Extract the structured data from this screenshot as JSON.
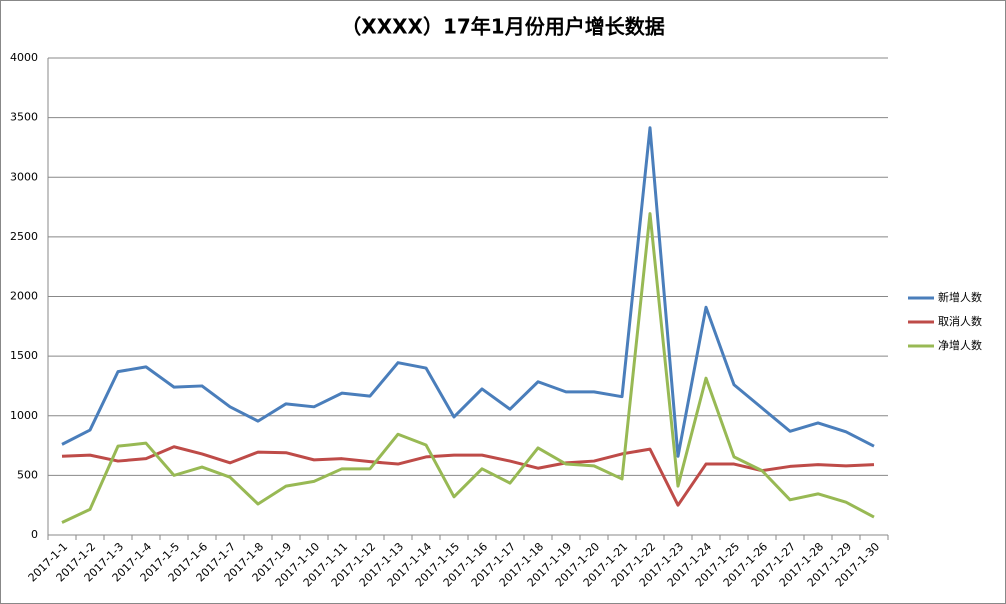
{
  "chart_data": {
    "type": "line",
    "title": "（XXXX）17年1月份用户增长数据",
    "categories": [
      "2017-1-1",
      "2017-1-2",
      "2017-1-3",
      "2017-1-4",
      "2017-1-5",
      "2017-1-6",
      "2017-1-7",
      "2017-1-8",
      "2017-1-9",
      "2017-1-10",
      "2017-1-11",
      "2017-1-12",
      "2017-1-13",
      "2017-1-14",
      "2017-1-15",
      "2017-1-16",
      "2017-1-17",
      "2017-1-18",
      "2017-1-19",
      "2017-1-20",
      "2017-1-21",
      "2017-1-22",
      "2017-1-23",
      "2017-1-24",
      "2017-1-25",
      "2017-1-26",
      "2017-1-27",
      "2017-1-28",
      "2017-1-29",
      "2017-1-30"
    ],
    "series": [
      {
        "name": "新增人数",
        "color": "#4a7ebb",
        "values": [
          760,
          880,
          1370,
          1410,
          1240,
          1250,
          1075,
          955,
          1100,
          1075,
          1190,
          1165,
          1445,
          1400,
          990,
          1225,
          1055,
          1285,
          1200,
          1200,
          1160,
          3415,
          660,
          1910,
          1260,
          1065,
          870,
          940,
          865,
          745
        ]
      },
      {
        "name": "取消人数",
        "color": "#be4b48",
        "values": [
          660,
          670,
          620,
          640,
          740,
          680,
          605,
          695,
          690,
          630,
          640,
          615,
          595,
          655,
          670,
          670,
          620,
          560,
          605,
          620,
          680,
          720,
          250,
          595,
          595,
          540,
          575,
          590,
          580,
          590
        ]
      },
      {
        "name": "净增人数",
        "color": "#98b954",
        "values": [
          105,
          215,
          745,
          770,
          500,
          570,
          485,
          260,
          410,
          450,
          555,
          555,
          845,
          755,
          320,
          555,
          435,
          730,
          595,
          580,
          470,
          2695,
          410,
          1315,
          655,
          540,
          295,
          345,
          275,
          150
        ]
      }
    ],
    "ylim": [
      0,
      4000
    ],
    "yticks": [
      0,
      500,
      1000,
      1500,
      2000,
      2500,
      3000,
      3500,
      4000
    ],
    "grid": true,
    "legend": "right"
  }
}
